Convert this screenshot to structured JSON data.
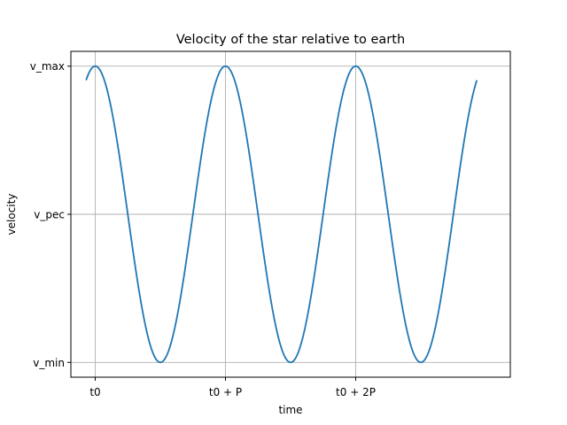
{
  "chart_data": {
    "type": "line",
    "title": "Velocity of the star relative to earth",
    "xlabel": "time",
    "ylabel": "velocity",
    "grid": true,
    "legend": "none",
    "line_color": "#1f77b4",
    "xlim": [
      -0.187,
      3.187
    ],
    "ylim": [
      -1.1,
      1.1
    ],
    "x_ticks": [
      {
        "value": 0,
        "label": "t0"
      },
      {
        "value": 1,
        "label": "t0 + P"
      },
      {
        "value": 2,
        "label": "t0 + 2P"
      }
    ],
    "y_ticks": [
      {
        "value": -1,
        "label": "v_min"
      },
      {
        "value": 0,
        "label": "v_pec"
      },
      {
        "value": 1,
        "label": "v_max"
      }
    ],
    "series": [
      {
        "function": "cos(2*pi*x)",
        "x_start": -0.07,
        "x_end": 2.93,
        "samples": 601
      }
    ]
  }
}
